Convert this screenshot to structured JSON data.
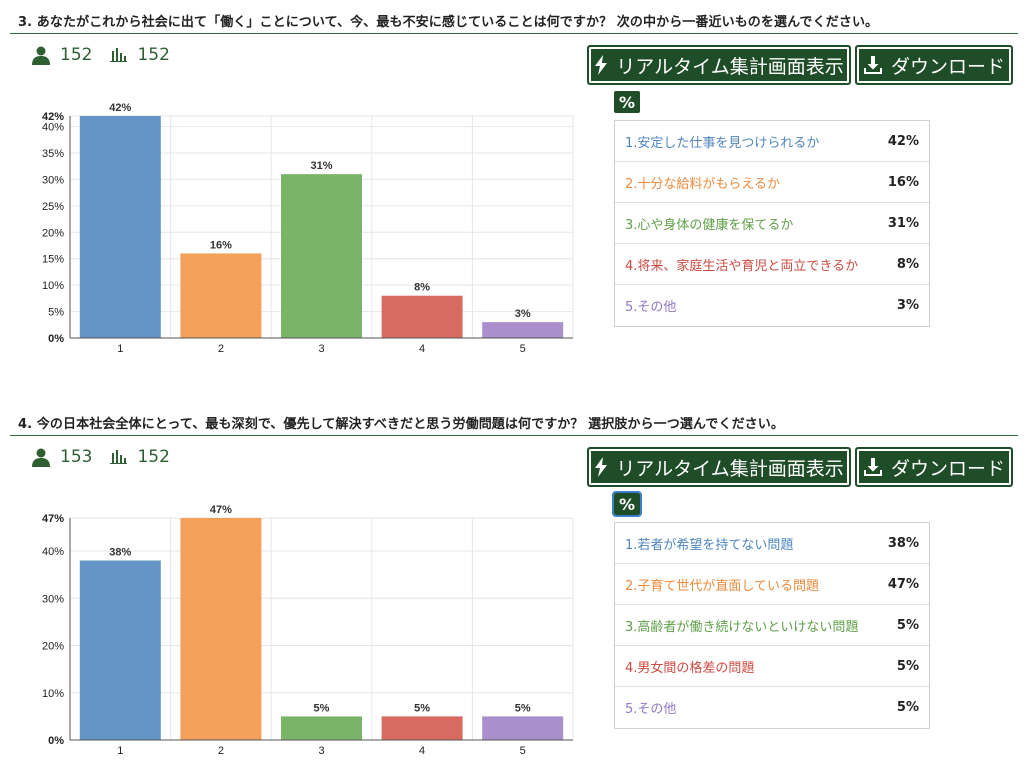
{
  "colors": {
    "series": [
      "#6495c6",
      "#f3a15a",
      "#7ab36a",
      "#d86a62",
      "#a98fcc"
    ],
    "accent": "#1f4d28"
  },
  "buttons": {
    "realtime_label": "リアルタイム集計画面表示",
    "download_label": "ダウンロード",
    "percent_label": "%"
  },
  "questions": [
    {
      "title": "3. あなたがこれから社会に出て「働く」ことについて、今、最も不安に感じていることは何ですか？ 次の中から一番近いものを選んでください。",
      "respondents": "152",
      "answers": "152",
      "legend": [
        {
          "label": "1.安定した仕事を見つけられるか",
          "value": "42%"
        },
        {
          "label": "2.十分な給料がもらえるか",
          "value": "16%"
        },
        {
          "label": "3.心や身体の健康を保てるか",
          "value": "31%"
        },
        {
          "label": "4.将来、家庭生活や育児と両立できるか",
          "value": "8%"
        },
        {
          "label": "5.その他",
          "value": "3%"
        }
      ]
    },
    {
      "title": "4. 今の日本社会全体にとって、最も深刻で、優先して解決すべきだと思う労働問題は何ですか？ 選択肢から一つ選んでください。",
      "respondents": "153",
      "answers": "152",
      "legend": [
        {
          "label": "1.若者が希望を持てない問題",
          "value": "38%"
        },
        {
          "label": "2.子育て世代が直面している問題",
          "value": "47%"
        },
        {
          "label": "3.高齢者が働き続けないといけない問題",
          "value": "5%"
        },
        {
          "label": "4.男女間の格差の問題",
          "value": "5%"
        },
        {
          "label": "5.その他",
          "value": "5%"
        }
      ]
    }
  ],
  "chart_data": [
    {
      "type": "bar",
      "categories": [
        "1",
        "2",
        "3",
        "4",
        "5"
      ],
      "values": [
        42,
        16,
        31,
        8,
        3
      ],
      "value_labels": [
        "42%",
        "16%",
        "31%",
        "8%",
        "3%"
      ],
      "yticks": [
        0,
        5,
        10,
        15,
        20,
        25,
        30,
        35,
        40,
        42
      ],
      "ytick_labels": [
        "0%",
        "5%",
        "10%",
        "15%",
        "20%",
        "25%",
        "30%",
        "35%",
        "40%",
        "42%"
      ],
      "ylim": [
        0,
        42
      ],
      "grid": true
    },
    {
      "type": "bar",
      "categories": [
        "1",
        "2",
        "3",
        "4",
        "5"
      ],
      "values": [
        38,
        47,
        5,
        5,
        5
      ],
      "value_labels": [
        "38%",
        "47%",
        "5%",
        "5%",
        "5%"
      ],
      "yticks": [
        0,
        10,
        20,
        30,
        40,
        47
      ],
      "ytick_labels": [
        "0%",
        "10%",
        "20%",
        "30%",
        "40%",
        "47%"
      ],
      "ylim": [
        0,
        47
      ],
      "grid": true
    }
  ]
}
